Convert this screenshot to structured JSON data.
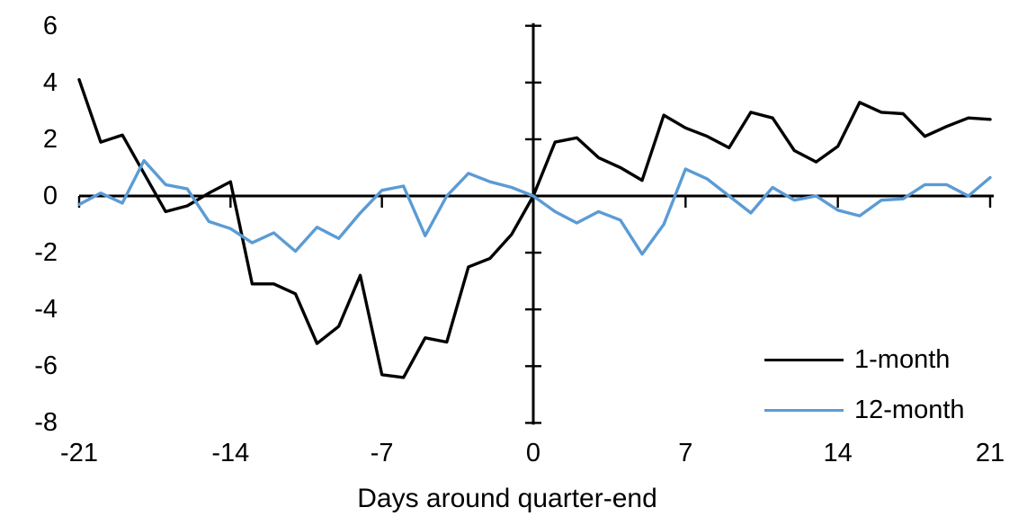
{
  "chart_data": {
    "type": "line",
    "title": "",
    "xlabel": "Days around quarter-end",
    "ylabel": "",
    "xlim": [
      -21,
      21
    ],
    "ylim": [
      -8,
      6
    ],
    "grid": false,
    "legend_position": "lower-right",
    "x_ticks": [
      -21,
      -14,
      -7,
      0,
      7,
      14,
      21
    ],
    "y_ticks": [
      6,
      4,
      2,
      0,
      -2,
      -4,
      -6,
      -8
    ],
    "x": [
      -21,
      -20,
      -19,
      -18,
      -17,
      -16,
      -15,
      -14,
      -13,
      -12,
      -11,
      -10,
      -9,
      -8,
      -7,
      -6,
      -5,
      -4,
      -3,
      -2,
      -1,
      0,
      1,
      2,
      3,
      4,
      5,
      6,
      7,
      8,
      9,
      10,
      11,
      12,
      13,
      14,
      15,
      16,
      17,
      18,
      19,
      20,
      21
    ],
    "series": [
      {
        "name": "1-month",
        "color": "#000000",
        "values": [
          4.1,
          1.9,
          2.15,
          0.8,
          -0.55,
          -0.35,
          0.1,
          0.5,
          -3.1,
          -3.1,
          -3.45,
          -5.2,
          -4.6,
          -2.8,
          -6.3,
          -6.4,
          -5.0,
          -5.15,
          -2.5,
          -2.2,
          -1.35,
          0,
          1.9,
          2.05,
          1.35,
          1.0,
          0.55,
          2.85,
          2.4,
          2.1,
          1.7,
          2.95,
          2.75,
          1.6,
          1.2,
          1.75,
          3.3,
          2.95,
          2.9,
          2.1,
          2.45,
          2.75,
          2.7
        ]
      },
      {
        "name": "12-month",
        "color": "#5B9BD5",
        "values": [
          -0.3,
          0.1,
          -0.25,
          1.25,
          0.4,
          0.25,
          -0.9,
          -1.15,
          -1.65,
          -1.3,
          -1.95,
          -1.1,
          -1.5,
          -0.6,
          0.2,
          0.35,
          -1.4,
          0.0,
          0.8,
          0.5,
          0.3,
          0,
          -0.55,
          -0.95,
          -0.55,
          -0.85,
          -2.05,
          -1.0,
          0.95,
          0.6,
          0.0,
          -0.6,
          0.3,
          -0.15,
          0.0,
          -0.5,
          -0.7,
          -0.15,
          -0.1,
          0.4,
          0.4,
          0.0,
          0.65
        ]
      }
    ]
  }
}
